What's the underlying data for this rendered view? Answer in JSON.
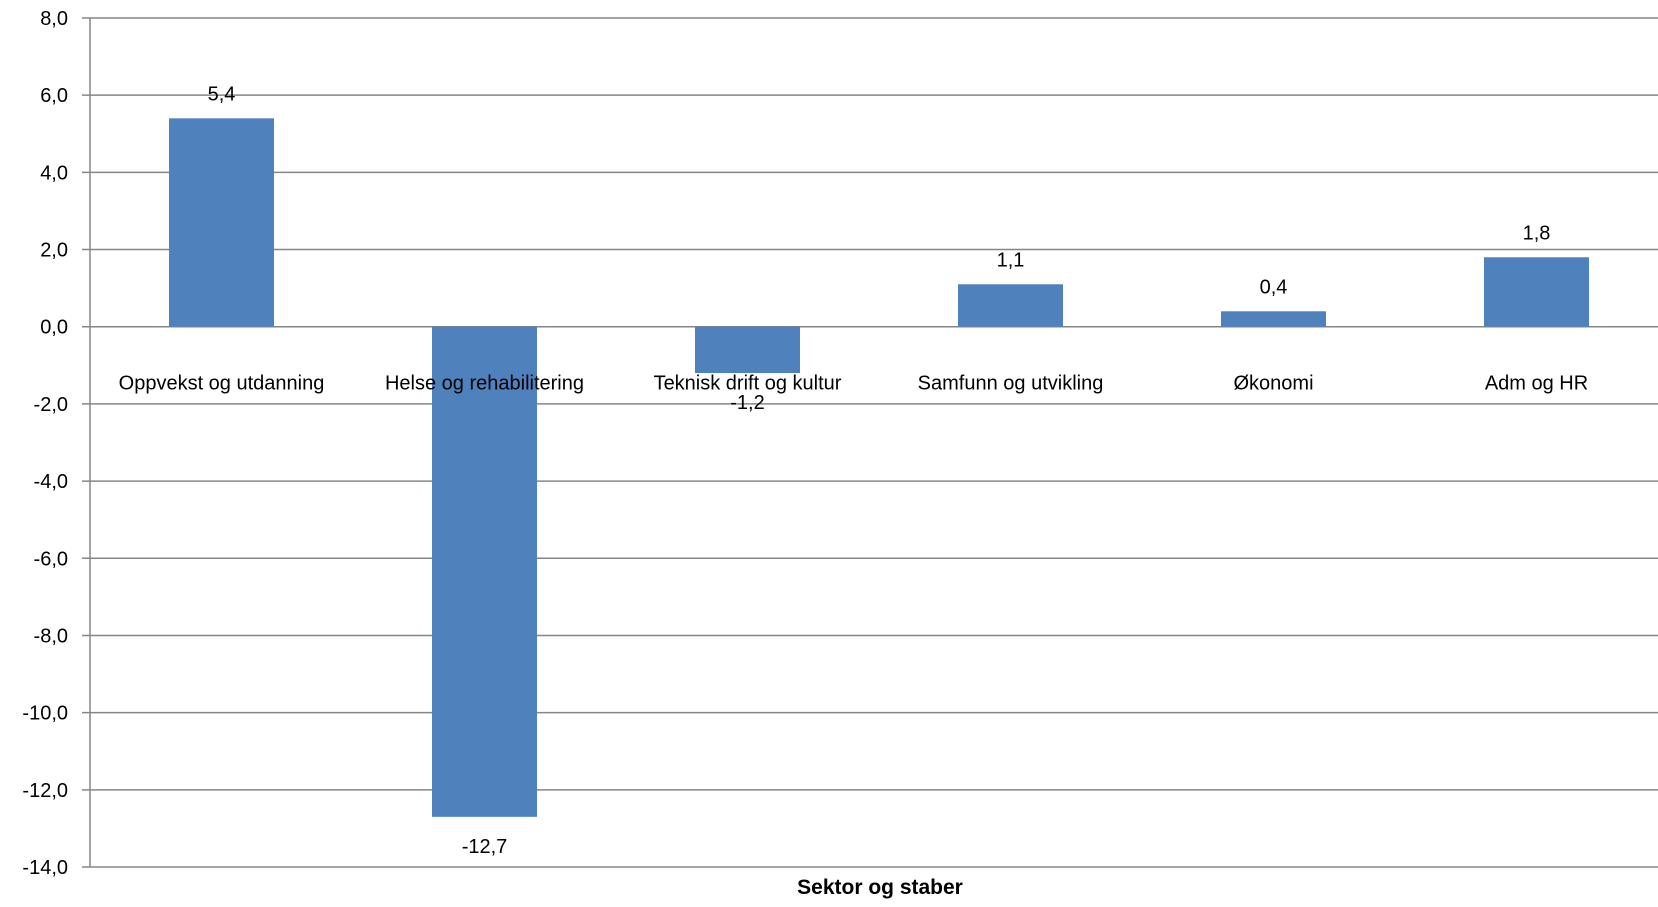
{
  "chart_data": {
    "type": "bar",
    "categories": [
      "Oppvekst og utdanning",
      "Helse og rehabilitering",
      "Teknisk drift og kultur",
      "Samfunn og utvikling",
      "Økonomi",
      "Adm og HR"
    ],
    "values": [
      5.4,
      -12.7,
      -1.2,
      1.1,
      0.4,
      1.8
    ],
    "value_labels": [
      "5,4",
      "-12,7",
      "-1,2",
      "1,1",
      "0,4",
      "1,8"
    ],
    "xlabel": "Sektor og staber",
    "ylabel": "",
    "ylim": [
      -14,
      8
    ],
    "ytick_values": [
      8,
      6,
      4,
      2,
      0,
      -2,
      -4,
      -6,
      -8,
      -10,
      -12,
      -14
    ],
    "ytick_labels": [
      "8,0",
      "6,0",
      "4,0",
      "2,0",
      "0,0",
      "-2,0",
      "-4,0",
      "-6,0",
      "-8,0",
      "-10,0",
      "-12,0",
      "-14,0"
    ],
    "grid": true,
    "bar_color": "#4F81BD",
    "grid_color": "#868686"
  }
}
